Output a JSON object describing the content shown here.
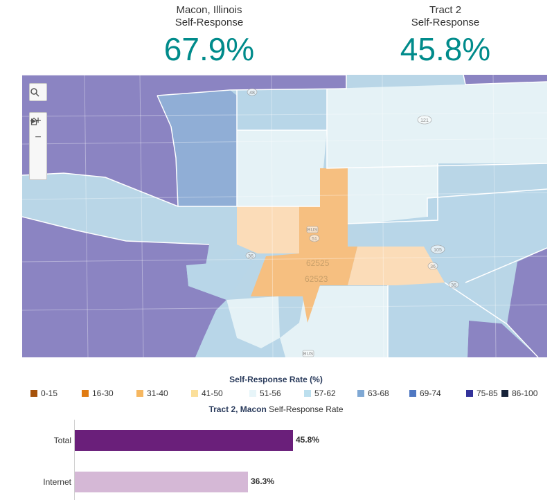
{
  "header": {
    "left": {
      "line1": "Macon, Illinois",
      "line2": "Self-Response",
      "value": "67.9%"
    },
    "right": {
      "line1": "Tract 2",
      "line2": "Self-Response",
      "value": "45.8%"
    }
  },
  "map_controls": {
    "search_icon": "search-icon",
    "zoom_in": "+",
    "zoom_out": "−",
    "home_icon": "home-icon",
    "play_icon": "play-icon"
  },
  "map_labels": {
    "zip1": "62525",
    "zip2": "62523",
    "shield_bus51": "BUS",
    "shield_51": "51",
    "shield_36a": "36",
    "shield_36b": "36",
    "shield_36c": "36",
    "shield_105": "105",
    "shield_121": "121",
    "shield_48": "48",
    "shield_bus": "BUS"
  },
  "legend": {
    "title": "Self-Response Rate (%)",
    "items": [
      {
        "label": "0-15",
        "color": "#a6520b"
      },
      {
        "label": "16-30",
        "color": "#e07b12"
      },
      {
        "label": "31-40",
        "color": "#f6b760"
      },
      {
        "label": "41-50",
        "color": "#fbdf9a"
      },
      {
        "label": "51-56",
        "color": "#e7f5f9"
      },
      {
        "label": "57-62",
        "color": "#bcdfee"
      },
      {
        "label": "63-68",
        "color": "#7fa8d4"
      },
      {
        "label": "69-74",
        "color": "#4f78c2"
      },
      {
        "label": "75-85",
        "color": "#33329a"
      },
      {
        "label": "86-100",
        "color": "#162238"
      }
    ]
  },
  "bar_chart": {
    "title_bold": "Tract 2, Macon",
    "title_rest": " Self-Response Rate",
    "rows": [
      {
        "label": "Total",
        "value": 45.8,
        "display": "45.8%",
        "color": "#6a1f7a"
      },
      {
        "label": "Internet",
        "value": 36.3,
        "display": "36.3%",
        "color": "#d5b8d6"
      }
    ]
  },
  "colors": {
    "accent": "#008b8b",
    "purple_region": "#8b82c0",
    "blue_region": "#8fb1d8",
    "light_blue": "#b5d3e6",
    "pale": "#e6f2f6",
    "orange": "#f6c083",
    "light_orange": "#fbdcb8"
  }
}
